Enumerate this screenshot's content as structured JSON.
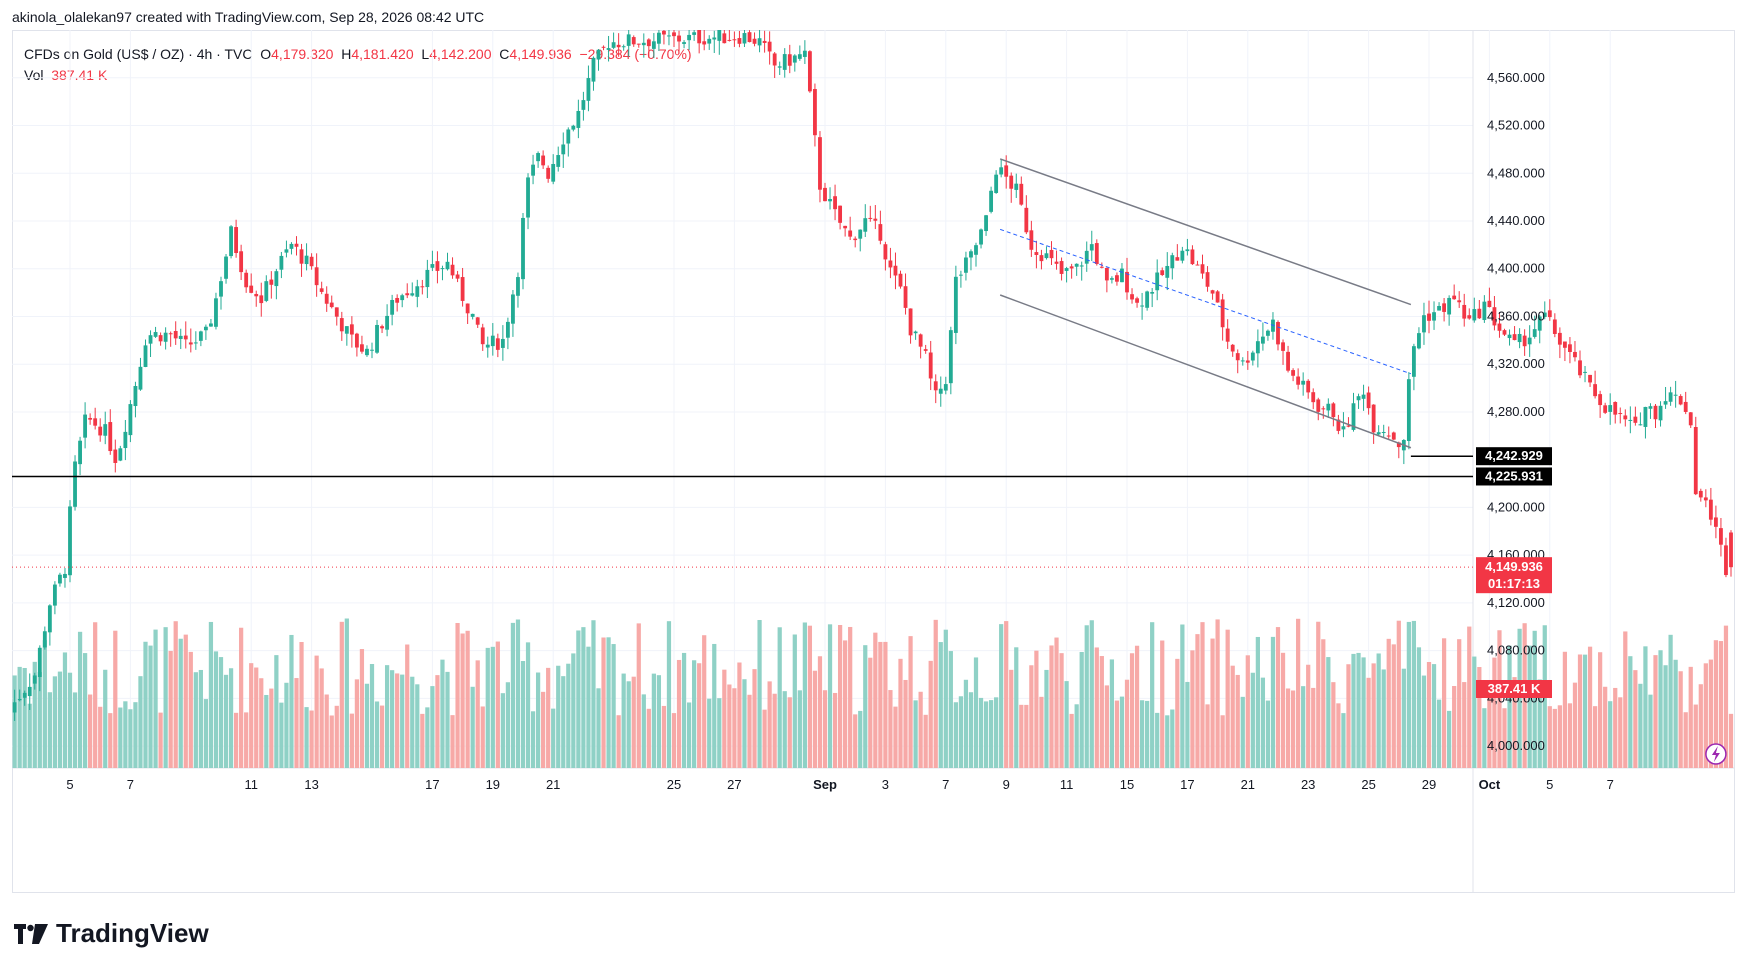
{
  "credit": "akinola_olalekan97 created with TradingView.com, Sep 28, 2026 08:42 UTC",
  "brand": "TradingView",
  "legend": {
    "symbol": "CFDs on Gold (US$ / OZ) · 4h · TVC",
    "o_key": "O",
    "o_val": "4,179.320",
    "h_key": "H",
    "h_val": "4,181.420",
    "l_key": "L",
    "l_val": "4,142.200",
    "c_key": "C",
    "c_val": "4,149.936",
    "change": "−29.384 (−0.70%)",
    "vol_key": "Vol",
    "vol_val": "387.41 K"
  },
  "colors": {
    "up": "#22ab94",
    "down": "#f23645",
    "vol_up": "#8fd1c6",
    "vol_down": "#f7a9a7",
    "grid": "#f0f3fa",
    "channel": "#787b86",
    "midline": "#2962ff",
    "level": "#000000",
    "price_line": "#f23645"
  },
  "chart_data": {
    "type": "candlestick",
    "symbol": "CFDs on Gold (US$ / OZ)",
    "interval": "4h",
    "ylim": [
      3980,
      4600
    ],
    "y_ticks": [
      4000,
      4040,
      4080,
      4120,
      4160,
      4200,
      4280,
      4320,
      4360,
      4400,
      4440,
      4480,
      4520,
      4560
    ],
    "y_tick_labels": [
      "4,000.000",
      "4,040.000",
      "4,080.000",
      "4,120.000",
      "4,160.000",
      "4,200.000",
      "4,280.000",
      "4,320.000",
      "4,360.000",
      "4,400.000",
      "4,440.000",
      "4,480.000",
      "4,520.000",
      "4,560.000"
    ],
    "x_ticks": [
      {
        "label": "5",
        "day": 5
      },
      {
        "label": "7",
        "day": 7
      },
      {
        "label": "11",
        "day": 11
      },
      {
        "label": "13",
        "day": 13
      },
      {
        "label": "17",
        "day": 17
      },
      {
        "label": "19",
        "day": 19
      },
      {
        "label": "21",
        "day": 21
      },
      {
        "label": "25",
        "day": 25
      },
      {
        "label": "27",
        "day": 27
      },
      {
        "label": "Sep",
        "day": 30
      },
      {
        "label": "3",
        "day": 32
      },
      {
        "label": "7",
        "day": 34
      },
      {
        "label": "9",
        "day": 36
      },
      {
        "label": "11",
        "day": 38
      },
      {
        "label": "15",
        "day": 40
      },
      {
        "label": "17",
        "day": 42
      },
      {
        "label": "21",
        "day": 44
      },
      {
        "label": "23",
        "day": 46
      },
      {
        "label": "25",
        "day": 48
      },
      {
        "label": "29",
        "day": 50
      },
      {
        "label": "Oct",
        "day": 52
      },
      {
        "label": "5",
        "day": 54
      },
      {
        "label": "7",
        "day": 56
      }
    ],
    "price_path": [
      [
        3,
        4025
      ],
      [
        4,
        4060
      ],
      [
        4.5,
        4120
      ],
      [
        5,
        4150
      ],
      [
        5.3,
        4230
      ],
      [
        5.7,
        4275
      ],
      [
        6.3,
        4265
      ],
      [
        6.7,
        4240
      ],
      [
        7,
        4270
      ],
      [
        7.3,
        4300
      ],
      [
        7.7,
        4345
      ],
      [
        8.5,
        4345
      ],
      [
        9,
        4335
      ],
      [
        9.7,
        4345
      ],
      [
        10,
        4375
      ],
      [
        10.5,
        4430
      ],
      [
        11,
        4390
      ],
      [
        11.5,
        4375
      ],
      [
        12,
        4400
      ],
      [
        12.5,
        4420
      ],
      [
        13,
        4405
      ],
      [
        13.5,
        4380
      ],
      [
        14,
        4360
      ],
      [
        14.5,
        4340
      ],
      [
        15,
        4330
      ],
      [
        15.5,
        4355
      ],
      [
        16,
        4375
      ],
      [
        16.5,
        4385
      ],
      [
        17,
        4395
      ],
      [
        17.7,
        4405
      ],
      [
        18,
        4385
      ],
      [
        18.5,
        4360
      ],
      [
        18.8,
        4335
      ],
      [
        19.5,
        4340
      ],
      [
        20,
        4400
      ],
      [
        20.3,
        4470
      ],
      [
        20.7,
        4495
      ],
      [
        21,
        4480
      ],
      [
        21.5,
        4510
      ],
      [
        22,
        4530
      ],
      [
        22.5,
        4570
      ],
      [
        23,
        4590
      ],
      [
        27.5,
        4595
      ],
      [
        28,
        4590
      ],
      [
        28.5,
        4570
      ],
      [
        29.5,
        4580
      ],
      [
        30,
        4470
      ],
      [
        30.5,
        4445
      ],
      [
        31,
        4425
      ],
      [
        31.5,
        4440
      ],
      [
        32,
        4430
      ],
      [
        32.3,
        4400
      ],
      [
        32.7,
        4380
      ],
      [
        33,
        4350
      ],
      [
        33.5,
        4325
      ],
      [
        33.8,
        4290
      ],
      [
        34.2,
        4310
      ],
      [
        34.5,
        4390
      ],
      [
        35,
        4410
      ],
      [
        35.5,
        4440
      ],
      [
        35.8,
        4485
      ],
      [
        36.2,
        4475
      ],
      [
        36.5,
        4465
      ],
      [
        37,
        4420
      ],
      [
        37.5,
        4410
      ],
      [
        38,
        4395
      ],
      [
        38.5,
        4400
      ],
      [
        39,
        4420
      ],
      [
        39.5,
        4385
      ],
      [
        40,
        4395
      ],
      [
        40.5,
        4370
      ],
      [
        41,
        4385
      ],
      [
        41.5,
        4400
      ],
      [
        42,
        4420
      ],
      [
        42.5,
        4400
      ],
      [
        43,
        4380
      ],
      [
        43.5,
        4340
      ],
      [
        44,
        4320
      ],
      [
        44.5,
        4340
      ],
      [
        45,
        4355
      ],
      [
        45.5,
        4315
      ],
      [
        46,
        4300
      ],
      [
        46.5,
        4285
      ],
      [
        47,
        4280
      ],
      [
        47.3,
        4260
      ],
      [
        47.7,
        4285
      ],
      [
        48,
        4300
      ],
      [
        48.3,
        4270
      ],
      [
        48.8,
        4265
      ],
      [
        49.3,
        4250
      ],
      [
        49.6,
        4330
      ],
      [
        50,
        4360
      ],
      [
        50.5,
        4365
      ],
      [
        51,
        4375
      ],
      [
        51.5,
        4355
      ],
      [
        52,
        4370
      ],
      [
        52.5,
        4350
      ],
      [
        53,
        4335
      ],
      [
        53.5,
        4345
      ],
      [
        54,
        4360
      ],
      [
        54.5,
        4340
      ],
      [
        55,
        4320
      ],
      [
        55.5,
        4300
      ],
      [
        56,
        4285
      ],
      [
        56.5,
        4275
      ],
      [
        57,
        4265
      ],
      [
        57.3,
        4285
      ],
      [
        57.7,
        4280
      ],
      [
        58,
        4295
      ],
      [
        58.5,
        4290
      ],
      [
        58.8,
        4280
      ],
      [
        59,
        4215
      ],
      [
        59.5,
        4195
      ],
      [
        60,
        4150
      ]
    ],
    "last_price": 4149.936,
    "countdown": "01:17:13",
    "levels": [
      {
        "label": "4,242.929",
        "value": 4242.929
      },
      {
        "label": "4,225.931",
        "value": 4225.931
      }
    ],
    "volume_label": "387.41 K",
    "volume_last": 387.41,
    "annotation": "descending channel"
  }
}
